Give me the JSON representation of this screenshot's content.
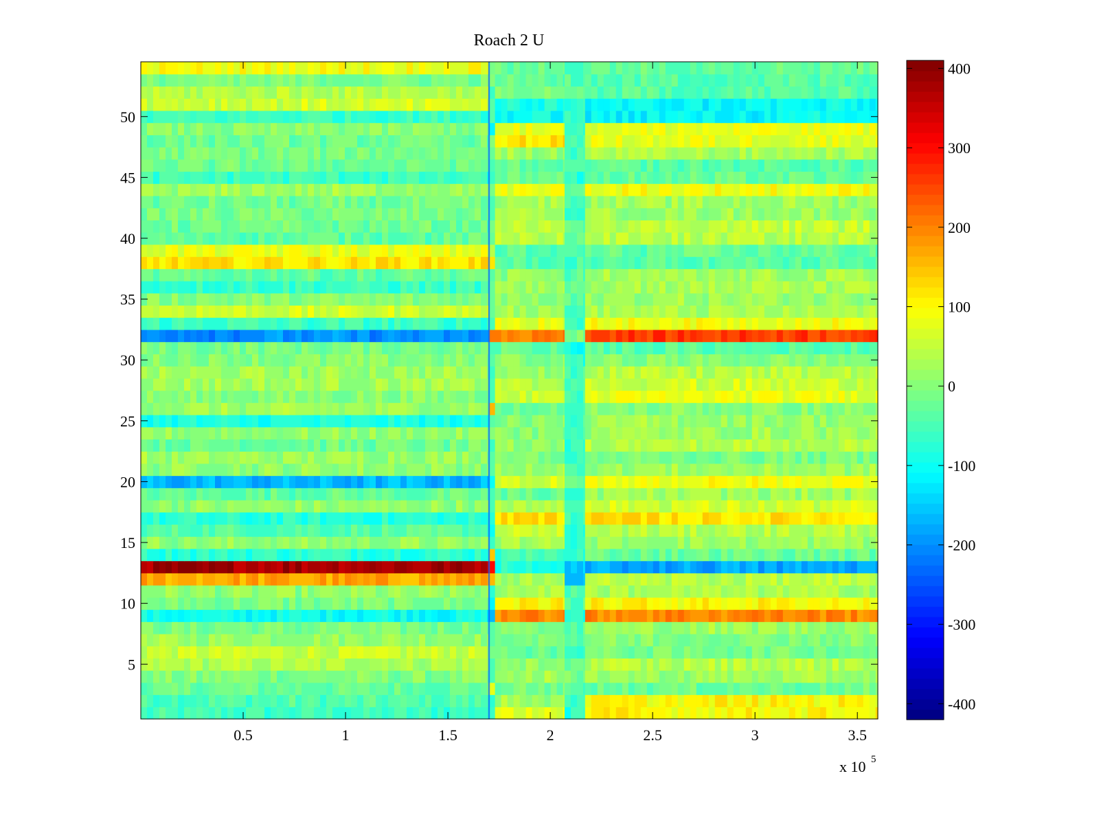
{
  "chart_data": {
    "type": "heatmap",
    "title": "Roach 2 U",
    "xlabel": "",
    "ylabel": "",
    "x_range": [
      0,
      360000
    ],
    "y_range": [
      0.5,
      54.5
    ],
    "x_ticks": [
      50000,
      100000,
      150000,
      200000,
      250000,
      300000,
      350000
    ],
    "x_tick_labels": [
      "0.5",
      "1",
      "1.5",
      "2",
      "2.5",
      "3",
      "3.5"
    ],
    "x_exponent_label": "x 10",
    "x_exponent_power": "5",
    "y_ticks": [
      5,
      10,
      15,
      20,
      25,
      30,
      35,
      40,
      45,
      50
    ],
    "y_tick_labels": [
      "5",
      "10",
      "15",
      "20",
      "25",
      "30",
      "35",
      "40",
      "45",
      "50"
    ],
    "colorbar": {
      "colormap": "jet",
      "range": [
        -420,
        410
      ],
      "ticks": [
        400,
        300,
        200,
        100,
        0,
        -100,
        -200,
        -300,
        -400
      ],
      "tick_labels": [
        "400",
        "300",
        "200",
        "100",
        "0",
        "-100",
        "-200",
        "-300",
        "-400"
      ]
    },
    "segments_x": [
      0,
      170000,
      173000,
      207000,
      217000,
      360000
    ],
    "rows": 54,
    "row_levels_by_segment": [
      [
        -60,
        -45,
        -25,
        -5,
        35,
        55,
        20,
        -10,
        -100,
        -10,
        10,
        170,
        380,
        -70,
        10,
        -40,
        -80,
        10,
        -30,
        -170,
        10,
        20,
        -20,
        10,
        -90,
        20,
        0,
        25,
        20,
        0,
        -10,
        -200,
        -60,
        60,
        0,
        -60,
        -30,
        120,
        80,
        -30,
        -20,
        -10,
        -20,
        20,
        -60,
        -20,
        -10,
        -20,
        0,
        -60,
        60,
        40,
        -10,
        90
      ],
      [
        -80,
        -60,
        80,
        -40,
        -30,
        -30,
        -50,
        -30,
        -150,
        -90,
        -60,
        130,
        300,
        160,
        -80,
        -100,
        -100,
        -30,
        -50,
        -120,
        -40,
        -60,
        -50,
        -20,
        -60,
        160,
        -30,
        -40,
        -40,
        -20,
        -60,
        230,
        -40,
        -20,
        -20,
        -40,
        -60,
        140,
        20,
        -40,
        -40,
        -60,
        -40,
        -20,
        -80,
        -40,
        -40,
        -20,
        -100,
        -60,
        -40,
        -40,
        20,
        -20
      ],
      [
        70,
        20,
        -10,
        20,
        20,
        -20,
        -10,
        -10,
        200,
        100,
        30,
        30,
        -80,
        -60,
        30,
        60,
        120,
        40,
        -20,
        60,
        20,
        -10,
        10,
        0,
        0,
        -10,
        50,
        40,
        20,
        0,
        -30,
        200,
        80,
        20,
        10,
        20,
        10,
        -40,
        -40,
        40,
        40,
        30,
        30,
        80,
        -20,
        -30,
        20,
        120,
        80,
        -100,
        -90,
        0,
        -30,
        -20
      ],
      [
        -70,
        -60,
        -40,
        -10,
        -30,
        -60,
        -20,
        -40,
        -80,
        -40,
        -40,
        -150,
        -140,
        -70,
        -70,
        -70,
        -60,
        -60,
        -60,
        -40,
        -40,
        -50,
        -60,
        -40,
        -50,
        -40,
        -50,
        -50,
        -60,
        -80,
        -90,
        -20,
        -70,
        -40,
        -40,
        -40,
        -40,
        -50,
        -50,
        -40,
        -40,
        -50,
        -40,
        -40,
        -70,
        -50,
        -50,
        -50,
        -70,
        -60,
        -60,
        -40,
        -40,
        -50
      ],
      [
        100,
        100,
        -20,
        20,
        40,
        -10,
        0,
        20,
        200,
        100,
        30,
        40,
        -180,
        -20,
        20,
        40,
        120,
        60,
        20,
        90,
        20,
        -10,
        40,
        20,
        20,
        0,
        80,
        60,
        40,
        0,
        -40,
        260,
        90,
        30,
        20,
        30,
        20,
        -40,
        -30,
        40,
        50,
        20,
        20,
        90,
        -30,
        -40,
        30,
        80,
        80,
        -110,
        -110,
        -40,
        -40,
        -20
      ]
    ]
  }
}
